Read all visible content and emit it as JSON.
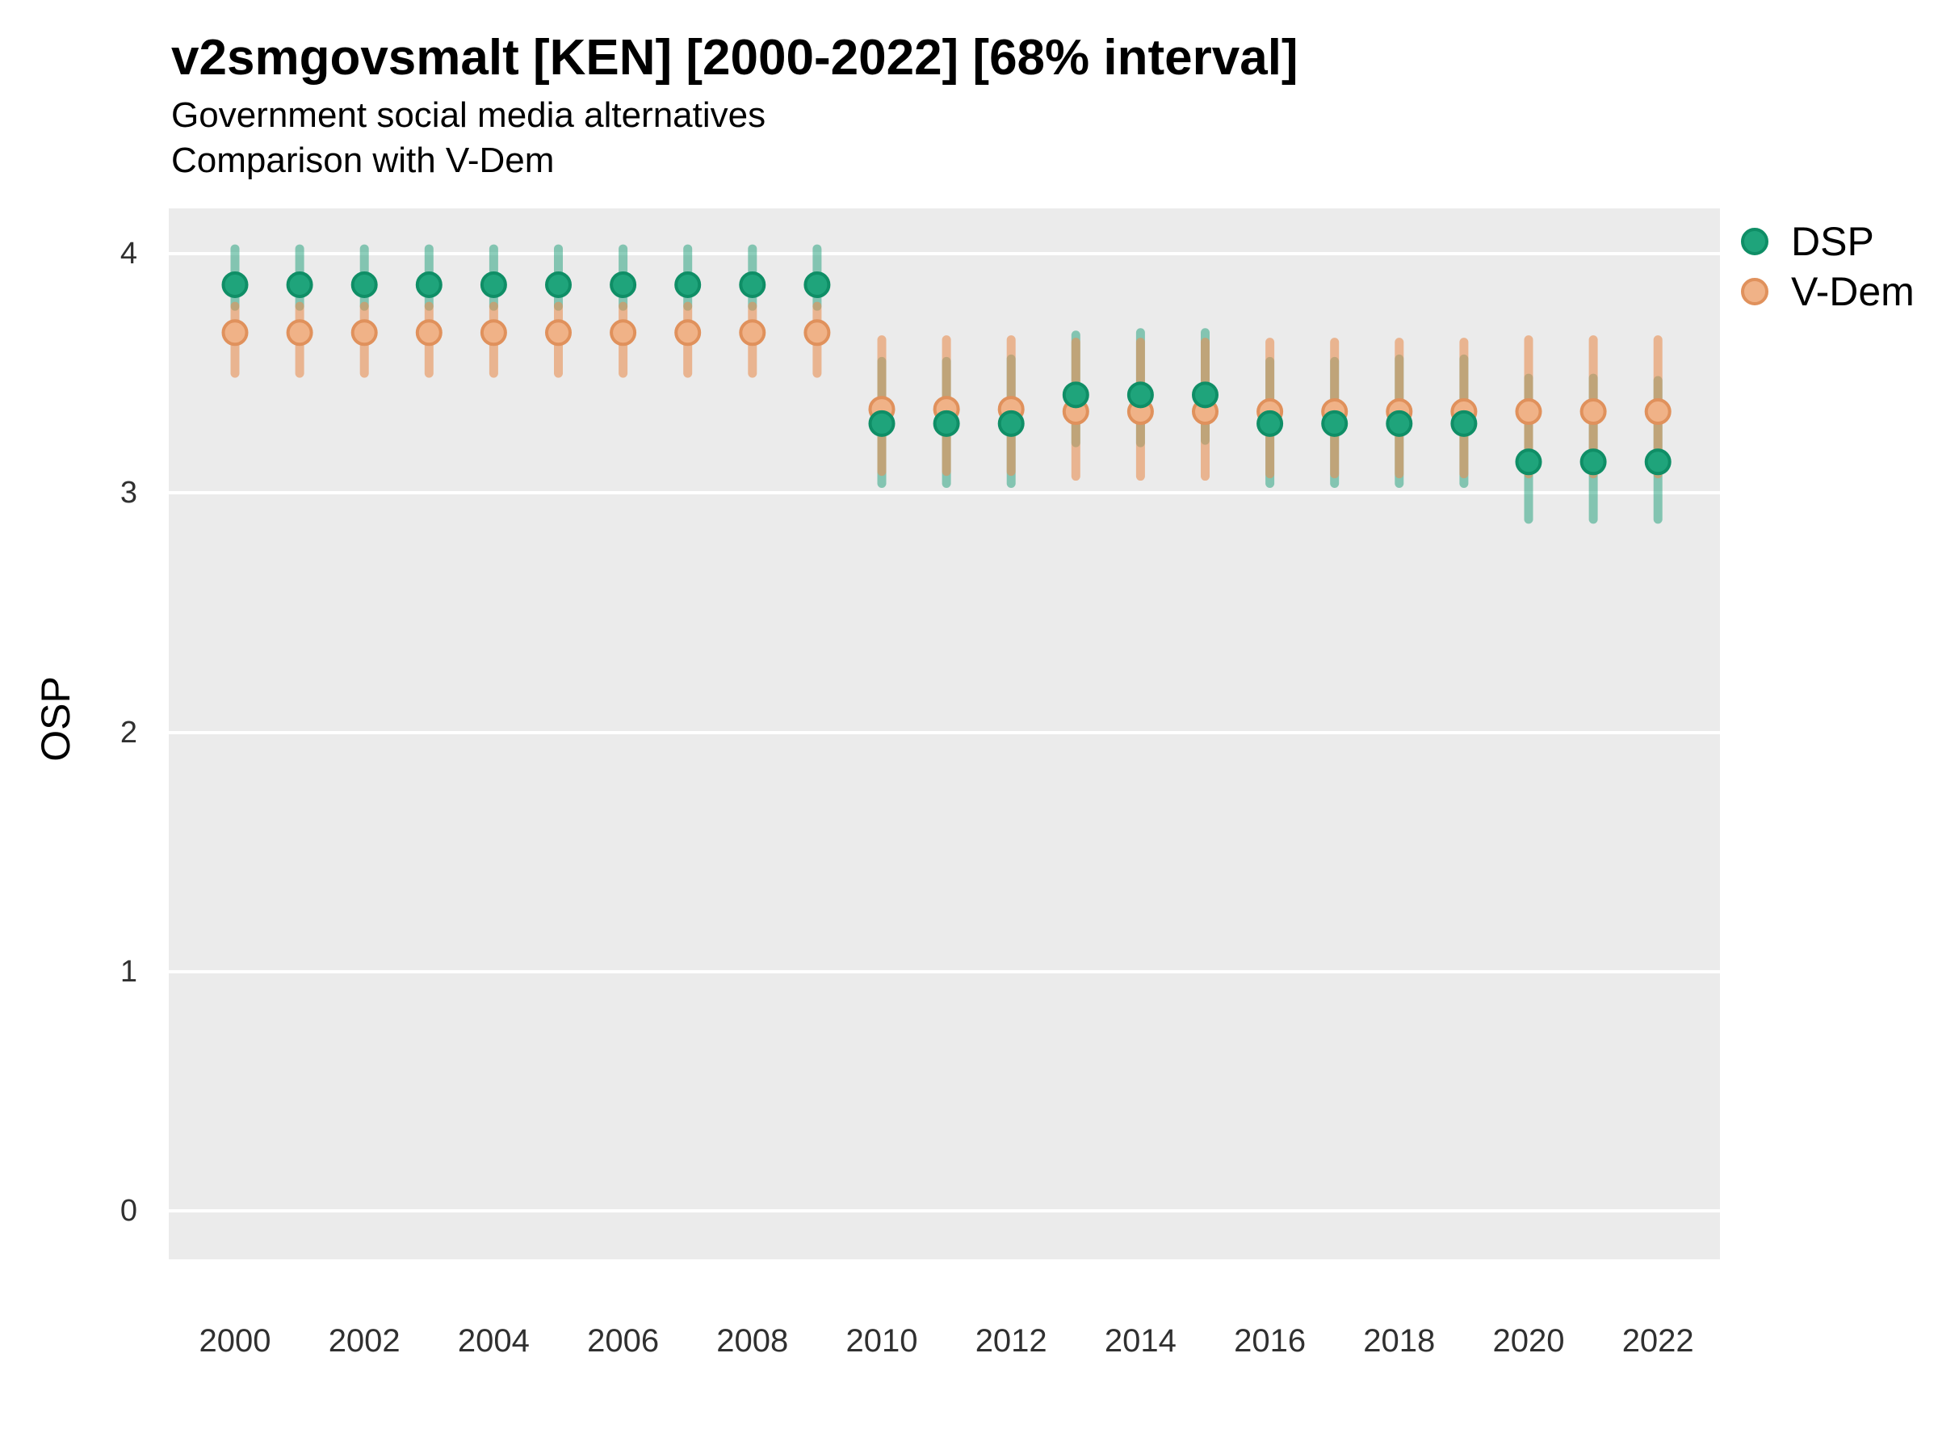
{
  "header": {
    "title": "v2smgovsmalt [KEN] [2000-2022] [68% interval]",
    "subtitle_line1": "Government social media alternatives",
    "subtitle_line2": "Comparison with V-Dem"
  },
  "legend": {
    "items": [
      {
        "id": "dsp",
        "label": "DSP",
        "fill": "#1FA47B",
        "stroke": "#0F8E66"
      },
      {
        "id": "vdem",
        "label": "V-Dem",
        "fill": "#F0B287",
        "stroke": "#E0915C"
      }
    ]
  },
  "axes": {
    "y_title": "OSP",
    "y_ticks": [
      4,
      3,
      2,
      1,
      0
    ],
    "x_ticks": [
      2000,
      2002,
      2004,
      2006,
      2008,
      2010,
      2012,
      2014,
      2016,
      2018,
      2020,
      2022
    ]
  },
  "colors": {
    "panel_background": "#EBEBEB",
    "gridline": "#FFFFFF",
    "dsp_point_fill": "#1FA47B",
    "dsp_point_stroke": "#0F8E66",
    "dsp_bar": "rgba(27,158,119,0.5)",
    "vdem_point_fill": "#F0B287",
    "vdem_point_stroke": "#E0915C",
    "vdem_bar": "rgba(232,144,84,0.6)",
    "tick_text": "#303030"
  },
  "chart_data": {
    "type": "scatter",
    "title": "v2smgovsmalt [KEN] [2000-2022] [68% interval]",
    "subtitle": [
      "Government social media alternatives",
      "Comparison with V-Dem"
    ],
    "interval_note": "68% interval",
    "xlabel": "",
    "ylabel": "OSP",
    "ylim": [
      -0.25,
      4.2
    ],
    "y_axis_ticks": [
      0,
      1,
      2,
      3,
      4
    ],
    "x_axis_ticks": [
      2000,
      2002,
      2004,
      2006,
      2008,
      2010,
      2012,
      2014,
      2016,
      2018,
      2020,
      2022
    ],
    "grid": "major-horizontal-only",
    "legend_position": "right",
    "x": [
      2000,
      2001,
      2002,
      2003,
      2004,
      2005,
      2006,
      2007,
      2008,
      2009,
      2010,
      2011,
      2012,
      2013,
      2014,
      2015,
      2016,
      2017,
      2018,
      2019,
      2020,
      2021,
      2022
    ],
    "series": [
      {
        "name": "DSP",
        "values": [
          3.87,
          3.87,
          3.87,
          3.87,
          3.87,
          3.87,
          3.87,
          3.87,
          3.87,
          3.87,
          3.29,
          3.29,
          3.29,
          3.41,
          3.41,
          3.41,
          3.29,
          3.29,
          3.29,
          3.29,
          3.13,
          3.13,
          3.13
        ],
        "lo": [
          3.78,
          3.78,
          3.78,
          3.78,
          3.78,
          3.78,
          3.78,
          3.78,
          3.78,
          3.78,
          3.04,
          3.04,
          3.04,
          3.21,
          3.21,
          3.22,
          3.04,
          3.04,
          3.04,
          3.04,
          2.89,
          2.89,
          2.89
        ],
        "hi": [
          4.02,
          4.02,
          4.02,
          4.02,
          4.02,
          4.02,
          4.02,
          4.02,
          4.02,
          4.02,
          3.55,
          3.55,
          3.56,
          3.66,
          3.67,
          3.67,
          3.55,
          3.55,
          3.56,
          3.56,
          3.48,
          3.48,
          3.47
        ]
      },
      {
        "name": "V-Dem",
        "values": [
          3.67,
          3.67,
          3.67,
          3.67,
          3.67,
          3.67,
          3.67,
          3.67,
          3.67,
          3.67,
          3.35,
          3.35,
          3.35,
          3.34,
          3.34,
          3.34,
          3.34,
          3.34,
          3.34,
          3.34,
          3.34,
          3.34,
          3.34
        ],
        "lo": [
          3.5,
          3.5,
          3.5,
          3.5,
          3.5,
          3.5,
          3.5,
          3.5,
          3.5,
          3.5,
          3.09,
          3.09,
          3.09,
          3.07,
          3.07,
          3.07,
          3.08,
          3.08,
          3.08,
          3.08,
          3.08,
          3.08,
          3.08
        ],
        "hi": [
          3.78,
          3.78,
          3.78,
          3.78,
          3.78,
          3.78,
          3.78,
          3.78,
          3.78,
          3.78,
          3.64,
          3.64,
          3.64,
          3.63,
          3.63,
          3.63,
          3.63,
          3.63,
          3.63,
          3.63,
          3.64,
          3.64,
          3.64
        ]
      }
    ]
  }
}
